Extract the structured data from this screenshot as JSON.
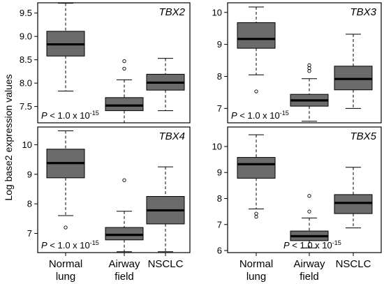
{
  "ylabel": "Log base2 expression values",
  "categories": [
    "Normal lung",
    "Airway field",
    "NSCLC"
  ],
  "categories_lines": [
    [
      "Normal",
      "lung"
    ],
    [
      "Airway",
      "field"
    ],
    [
      "NSCLC"
    ]
  ],
  "colors": {
    "box": "#6b6b6b",
    "median": "#000000",
    "panel_border": "#000000"
  },
  "chart_data": [
    {
      "type": "box",
      "title": "TBX2",
      "categories": [
        "Normal lung",
        "Airway field",
        "NSCLC"
      ],
      "ylim": [
        7.15,
        9.72
      ],
      "yticks": [
        7.5,
        8.0,
        8.5,
        9.0,
        9.5
      ],
      "ytick_labels": [
        "7.5",
        "8.0",
        "8.5",
        "9.0",
        "9.5"
      ],
      "pvalue": {
        "prefix": "P",
        "text": " < 1.0 x 10",
        "exp": "-15",
        "position": "bottom-left"
      },
      "boxes": [
        {
          "category": "Normal lung",
          "whisker_low": 7.83,
          "q1": 8.58,
          "median": 8.83,
          "q3": 9.11,
          "whisker_high": 9.71,
          "outliers": []
        },
        {
          "category": "Airway field",
          "whisker_low": 7.15,
          "q1": 7.41,
          "median": 7.52,
          "q3": 7.69,
          "whisker_high": 8.07,
          "outliers": [
            8.31,
            8.47
          ]
        },
        {
          "category": "NSCLC",
          "whisker_low": 7.41,
          "q1": 7.85,
          "median": 8.01,
          "q3": 8.19,
          "whisker_high": 8.53,
          "outliers": []
        }
      ]
    },
    {
      "type": "box",
      "title": "TBX3",
      "categories": [
        "Normal lung",
        "Airway field",
        "NSCLC"
      ],
      "ylim": [
        6.55,
        10.3
      ],
      "yticks": [
        7,
        8,
        9,
        10
      ],
      "ytick_labels": [
        "7",
        "8",
        "9",
        "10"
      ],
      "pvalue": {
        "prefix": "P",
        "text": " < 1.0 x 10",
        "exp": "-15",
        "position": "bottom-left"
      },
      "boxes": [
        {
          "category": "Normal lung",
          "whisker_low": 8.05,
          "q1": 8.88,
          "median": 9.17,
          "q3": 9.68,
          "whisker_high": 10.17,
          "outliers": [
            7.53
          ]
        },
        {
          "category": "Airway field",
          "whisker_low": 6.6,
          "q1": 7.07,
          "median": 7.25,
          "q3": 7.44,
          "whisker_high": 7.93,
          "outliers": [
            8.17,
            8.26,
            8.35
          ]
        },
        {
          "category": "NSCLC",
          "whisker_low": 7.0,
          "q1": 7.58,
          "median": 7.92,
          "q3": 8.32,
          "whisker_high": 9.32,
          "outliers": []
        }
      ]
    },
    {
      "type": "box",
      "title": "TBX4",
      "categories": [
        "Normal lung",
        "Airway field",
        "NSCLC"
      ],
      "ylim": [
        6.35,
        10.6
      ],
      "yticks": [
        7,
        8,
        9,
        10
      ],
      "ytick_labels": [
        "7",
        "8",
        "9",
        "10"
      ],
      "pvalue": {
        "prefix": "P",
        "text": " < 1.0 x 10",
        "exp": "-15",
        "position": "bottom-left"
      },
      "boxes": [
        {
          "category": "Normal lung",
          "whisker_low": 7.6,
          "q1": 8.88,
          "median": 9.38,
          "q3": 9.85,
          "whisker_high": 10.47,
          "outliers": [
            7.2
          ]
        },
        {
          "category": "Airway field",
          "whisker_low": 6.38,
          "q1": 6.78,
          "median": 6.95,
          "q3": 7.2,
          "whisker_high": 7.75,
          "outliers": [
            8.8
          ]
        },
        {
          "category": "NSCLC",
          "whisker_low": 6.38,
          "q1": 7.32,
          "median": 7.78,
          "q3": 8.25,
          "whisker_high": 9.25,
          "outliers": []
        }
      ]
    },
    {
      "type": "box",
      "title": "TBX5",
      "categories": [
        "Normal lung",
        "Airway field",
        "NSCLC"
      ],
      "ylim": [
        5.92,
        10.75
      ],
      "yticks": [
        6,
        7,
        8,
        9,
        10
      ],
      "ytick_labels": [
        "6",
        "7",
        "8",
        "9",
        "10"
      ],
      "pvalue": {
        "prefix": "P",
        "text": " < 1.0 x 10",
        "exp": "-15",
        "position": "bottom-right"
      },
      "boxes": [
        {
          "category": "Normal lung",
          "whisker_low": 7.6,
          "q1": 8.78,
          "median": 9.32,
          "q3": 9.58,
          "whisker_high": 10.45,
          "outliers": [
            7.3,
            7.42
          ]
        },
        {
          "category": "Airway field",
          "whisker_low": 6.1,
          "q1": 6.38,
          "median": 6.55,
          "q3": 6.75,
          "whisker_high": 7.25,
          "outliers": [
            7.5,
            8.1
          ]
        },
        {
          "category": "NSCLC",
          "whisker_low": 6.87,
          "q1": 7.42,
          "median": 7.83,
          "q3": 8.15,
          "whisker_high": 9.2,
          "outliers": []
        }
      ]
    }
  ]
}
